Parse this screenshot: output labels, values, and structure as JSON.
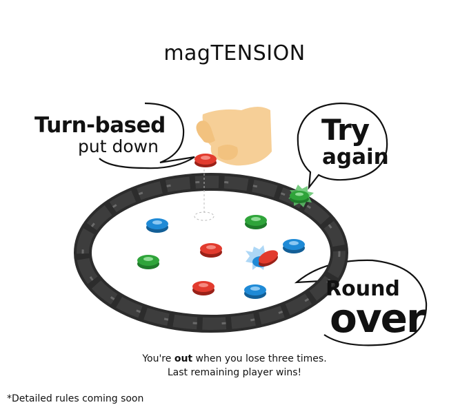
{
  "title": "magTENSION",
  "callouts": {
    "turn_line1": "Turn-based",
    "turn_line2": "put down",
    "try_line1": "Try",
    "try_line2": "again",
    "round_line1": "Round",
    "round_line2": "over"
  },
  "caption": {
    "line1_pre": "You're ",
    "line1_bold": "out",
    "line1_post": " when you lose three times.",
    "line2": "Last remaining player wins!"
  },
  "footnote": "*Detailed rules coming soon",
  "colors": {
    "red": "#e23b2e",
    "blue": "#1f8ad6",
    "green": "#2fa43a",
    "rope": "#2c2c2c",
    "hand": "#f6cf97"
  },
  "pieces": [
    {
      "color": "blue",
      "label": "blue-stone"
    },
    {
      "color": "green",
      "label": "green-stone"
    },
    {
      "color": "red",
      "label": "red-stone"
    },
    {
      "color": "blue",
      "label": "blue-stone"
    },
    {
      "color": "green",
      "label": "green-stone"
    },
    {
      "color": "red",
      "label": "red-stone"
    },
    {
      "color": "blue",
      "label": "blue-stone"
    },
    {
      "color": "green",
      "label": "green-stone"
    }
  ]
}
